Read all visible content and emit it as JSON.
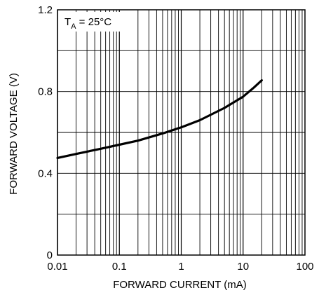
{
  "chart_data": {
    "type": "line",
    "title": "",
    "xlabel": "FORWARD CURRENT (mA)",
    "ylabel": "FORWARD VOLTAGE (V)",
    "xscale": "log",
    "xlim": [
      0.01,
      100
    ],
    "ylim": [
      0,
      1.2
    ],
    "x_ticks": [
      0.01,
      0.1,
      1,
      10,
      100
    ],
    "x_tick_labels": [
      "0.01",
      "0.1",
      "1",
      "10",
      "100"
    ],
    "y_ticks": [
      0,
      0.4,
      0.8,
      1.2
    ],
    "y_tick_labels": [
      "0",
      "0.4",
      "0.8",
      "1.2"
    ],
    "grid": true,
    "annotation": {
      "prefix": "T",
      "subscript": "A",
      "suffix": " = 25°C"
    },
    "series": [
      {
        "x": [
          0.01,
          0.02,
          0.05,
          0.1,
          0.2,
          0.5,
          1,
          2,
          5,
          10,
          15,
          20
        ],
        "y": [
          0.475,
          0.495,
          0.52,
          0.54,
          0.56,
          0.595,
          0.625,
          0.66,
          0.72,
          0.775,
          0.82,
          0.855
        ]
      }
    ]
  }
}
